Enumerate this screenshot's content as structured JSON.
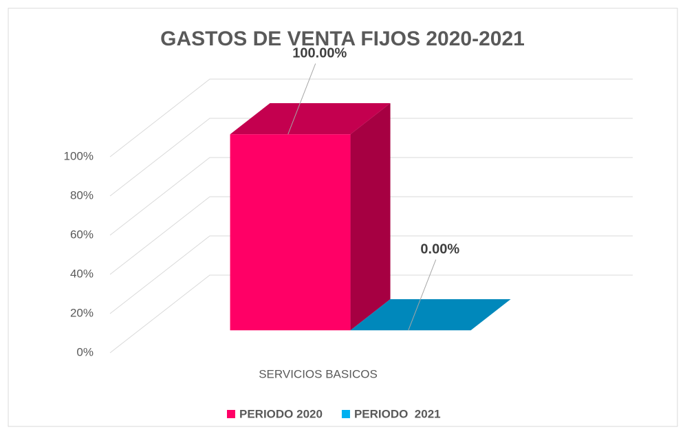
{
  "chart_data": {
    "type": "bar3d",
    "title": "GASTOS DE VENTA FIJOS 2020-2021",
    "categories": [
      "SERVICIOS BASICOS"
    ],
    "series": [
      {
        "name": "PERIODO 2020",
        "color": "#ff0066",
        "values": [
          100
        ],
        "value_labels": [
          "100.00%"
        ]
      },
      {
        "name": "PERIODO  2021",
        "color": "#00b0f0",
        "values": [
          0
        ],
        "value_labels": [
          "0.00%"
        ]
      }
    ],
    "ylim": [
      0,
      100
    ],
    "yticks": [
      {
        "value": 0,
        "label": "0%"
      },
      {
        "value": 20,
        "label": "20%"
      },
      {
        "value": 40,
        "label": "40%"
      },
      {
        "value": 60,
        "label": "60%"
      },
      {
        "value": 80,
        "label": "80%"
      },
      {
        "value": 100,
        "label": "100%"
      }
    ],
    "grid": true,
    "legend": "bottom"
  }
}
